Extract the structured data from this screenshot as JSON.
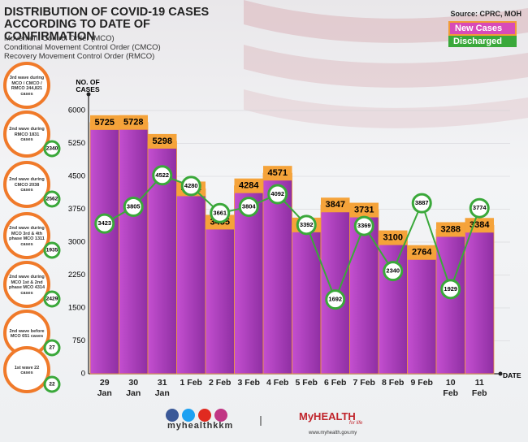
{
  "chart_data": {
    "type": "bar",
    "title": "DISTRIBUTION OF COVID-19 CASES ACCORDING TO DATE OF CONFIRMATION",
    "notes": [
      "Movement Control Order (MCO)",
      "Conditional Movement Control Order (CMCO)",
      "Recovery Movement Control Order (RMCO)"
    ],
    "source": "Source: CPRC, MOH",
    "y_label": "NO. OF CASES",
    "x_label": "DATE",
    "categories": [
      "29 Jan",
      "30 Jan",
      "31 Jan",
      "1 Feb",
      "2 Feb",
      "3 Feb",
      "4 Feb",
      "5 Feb",
      "6 Feb",
      "7 Feb",
      "8 Feb",
      "9 Feb",
      "10 Feb",
      "11 Feb"
    ],
    "series": [
      {
        "name": "New Cases",
        "color": "#a83cb8",
        "values": [
          5725,
          5728,
          5298,
          4214,
          3455,
          4284,
          4571,
          3391,
          3847,
          3731,
          3100,
          2764,
          3288,
          3384
        ]
      },
      {
        "name": "Discharged",
        "color": "#3aa83a",
        "values": [
          3423,
          3805,
          4522,
          4280,
          3661,
          3804,
          4092,
          3392,
          1692,
          3369,
          2340,
          3887,
          1929,
          3774
        ]
      }
    ],
    "ylim": [
      0,
      6000
    ],
    "yticks": [
      0,
      750,
      1500,
      2250,
      3000,
      3750,
      4500,
      5250,
      6000
    ],
    "grid": true,
    "waves": [
      {
        "text": "3rd wave during MCO / CMCO / RMCO 244,821 cases",
        "discharged": null
      },
      {
        "text": "2nd wave during RMCO 1831 cases",
        "discharged": "2340"
      },
      {
        "text": "2nd wave during CMCO 2038 cases",
        "discharged": "2562"
      },
      {
        "text": "2nd wave during MCO 3rd & 4th phase MCO 1311 cases",
        "discharged": "1935"
      },
      {
        "text": "2nd wave during MCO 1st & 2nd phase MCO 4314 cases",
        "discharged": "2429"
      },
      {
        "text": "2nd wave before MCO 651 cases",
        "discharged": "27"
      },
      {
        "text": "1st wave 22 cases",
        "discharged": "22"
      }
    ]
  },
  "footer": {
    "handle": "myhealthkkm",
    "brand": "MyHEALTH",
    "tagline": "for life",
    "url": "www.myhealth.gov.my"
  }
}
